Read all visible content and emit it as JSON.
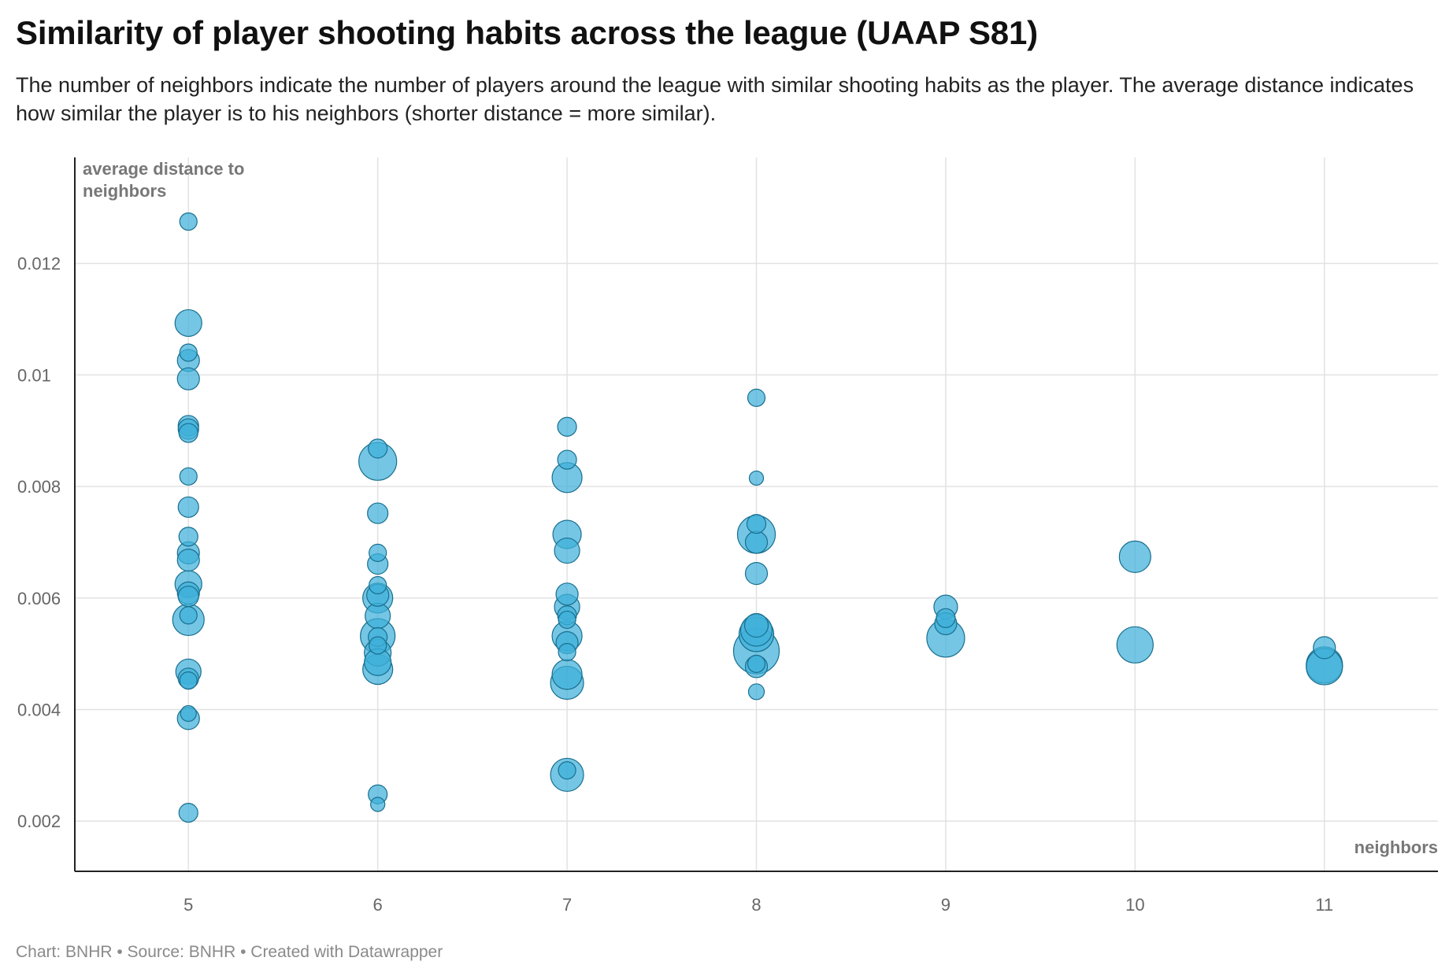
{
  "title": "Similarity of player shooting habits across the league (UAAP S81)",
  "subtitle": "The number of neighbors indicate the number of players around the league with similar shooting habits as the player. The average distance indicates how similar the player is to his neighbors (shorter distance = more similar).",
  "footer": "Chart: BNHR • Source: BNHR • Created with Datawrapper",
  "colors": {
    "bubble_fill": "#3fb0d9",
    "bubble_stroke": "#1a6f8e",
    "grid": "#e2e2e2",
    "axis": "#222222"
  },
  "chart_data": {
    "type": "scatter",
    "xlabel": "neighbors",
    "ylabel_lines": [
      "average distance to",
      "neighbors"
    ],
    "x_ticks": [
      5,
      6,
      7,
      8,
      9,
      10,
      11
    ],
    "y_ticks": [
      0.002,
      0.004,
      0.006,
      0.008,
      0.01,
      0.012
    ],
    "y_tick_labels": [
      "0.002",
      "0.004",
      "0.006",
      "0.008",
      "0.01",
      "0.012"
    ],
    "xlim": [
      4.4,
      11.6
    ],
    "ylim": [
      0.0011,
      0.0139
    ],
    "grid": true,
    "bubble_size_range": [
      11,
      40
    ],
    "points": [
      {
        "x": 5,
        "y": 0.01275,
        "r": 11
      },
      {
        "x": 5,
        "y": 0.01093,
        "r": 17
      },
      {
        "x": 5,
        "y": 0.0104,
        "r": 11
      },
      {
        "x": 5,
        "y": 0.01026,
        "r": 14
      },
      {
        "x": 5,
        "y": 0.00993,
        "r": 14
      },
      {
        "x": 5,
        "y": 0.00909,
        "r": 13
      },
      {
        "x": 5,
        "y": 0.00903,
        "r": 13
      },
      {
        "x": 5,
        "y": 0.00896,
        "r": 12
      },
      {
        "x": 5,
        "y": 0.00818,
        "r": 11
      },
      {
        "x": 5,
        "y": 0.00763,
        "r": 13
      },
      {
        "x": 5,
        "y": 0.0071,
        "r": 12
      },
      {
        "x": 5,
        "y": 0.00681,
        "r": 14
      },
      {
        "x": 5,
        "y": 0.00668,
        "r": 14
      },
      {
        "x": 5,
        "y": 0.00625,
        "r": 17
      },
      {
        "x": 5,
        "y": 0.00609,
        "r": 14
      },
      {
        "x": 5,
        "y": 0.00603,
        "r": 13
      },
      {
        "x": 5,
        "y": 0.00569,
        "r": 11
      },
      {
        "x": 5,
        "y": 0.00561,
        "r": 20
      },
      {
        "x": 5,
        "y": 0.00468,
        "r": 16
      },
      {
        "x": 5,
        "y": 0.00456,
        "r": 13
      },
      {
        "x": 5,
        "y": 0.00452,
        "r": 11
      },
      {
        "x": 5,
        "y": 0.00393,
        "r": 10
      },
      {
        "x": 5,
        "y": 0.00384,
        "r": 14
      },
      {
        "x": 5,
        "y": 0.00215,
        "r": 12
      },
      {
        "x": 6,
        "y": 0.00868,
        "r": 12
      },
      {
        "x": 6,
        "y": 0.00845,
        "r": 24
      },
      {
        "x": 6,
        "y": 0.00752,
        "r": 13
      },
      {
        "x": 6,
        "y": 0.00681,
        "r": 11
      },
      {
        "x": 6,
        "y": 0.00661,
        "r": 13
      },
      {
        "x": 6,
        "y": 0.00623,
        "r": 11
      },
      {
        "x": 6,
        "y": 0.00605,
        "r": 14
      },
      {
        "x": 6,
        "y": 0.006,
        "r": 19
      },
      {
        "x": 6,
        "y": 0.00568,
        "r": 16
      },
      {
        "x": 6,
        "y": 0.00532,
        "r": 22
      },
      {
        "x": 6,
        "y": 0.0053,
        "r": 12
      },
      {
        "x": 6,
        "y": 0.00515,
        "r": 11
      },
      {
        "x": 6,
        "y": 0.00502,
        "r": 17
      },
      {
        "x": 6,
        "y": 0.00485,
        "r": 17
      },
      {
        "x": 6,
        "y": 0.00472,
        "r": 19
      },
      {
        "x": 6,
        "y": 0.00248,
        "r": 12
      },
      {
        "x": 6,
        "y": 0.0023,
        "r": 9
      },
      {
        "x": 7,
        "y": 0.00907,
        "r": 12
      },
      {
        "x": 7,
        "y": 0.00848,
        "r": 12
      },
      {
        "x": 7,
        "y": 0.00816,
        "r": 19
      },
      {
        "x": 7,
        "y": 0.00714,
        "r": 18
      },
      {
        "x": 7,
        "y": 0.00685,
        "r": 16
      },
      {
        "x": 7,
        "y": 0.00607,
        "r": 14
      },
      {
        "x": 7,
        "y": 0.00584,
        "r": 16
      },
      {
        "x": 7,
        "y": 0.00569,
        "r": 12
      },
      {
        "x": 7,
        "y": 0.00561,
        "r": 11
      },
      {
        "x": 7,
        "y": 0.00532,
        "r": 19
      },
      {
        "x": 7,
        "y": 0.0052,
        "r": 14
      },
      {
        "x": 7,
        "y": 0.00503,
        "r": 11
      },
      {
        "x": 7,
        "y": 0.00463,
        "r": 19
      },
      {
        "x": 7,
        "y": 0.00448,
        "r": 21
      },
      {
        "x": 7,
        "y": 0.00283,
        "r": 21
      },
      {
        "x": 7,
        "y": 0.00291,
        "r": 11
      },
      {
        "x": 8,
        "y": 0.00959,
        "r": 11
      },
      {
        "x": 8,
        "y": 0.00815,
        "r": 9
      },
      {
        "x": 8,
        "y": 0.00733,
        "r": 12
      },
      {
        "x": 8,
        "y": 0.00714,
        "r": 24
      },
      {
        "x": 8,
        "y": 0.007,
        "r": 14
      },
      {
        "x": 8,
        "y": 0.00644,
        "r": 14
      },
      {
        "x": 8,
        "y": 0.00551,
        "r": 15
      },
      {
        "x": 8,
        "y": 0.00542,
        "r": 20
      },
      {
        "x": 8,
        "y": 0.00535,
        "r": 22
      },
      {
        "x": 8,
        "y": 0.00505,
        "r": 29
      },
      {
        "x": 8,
        "y": 0.00482,
        "r": 11
      },
      {
        "x": 8,
        "y": 0.00477,
        "r": 14
      },
      {
        "x": 8,
        "y": 0.00432,
        "r": 10
      },
      {
        "x": 9,
        "y": 0.00584,
        "r": 15
      },
      {
        "x": 9,
        "y": 0.00564,
        "r": 12
      },
      {
        "x": 9,
        "y": 0.00554,
        "r": 14
      },
      {
        "x": 9,
        "y": 0.00528,
        "r": 24
      },
      {
        "x": 10,
        "y": 0.00674,
        "r": 20
      },
      {
        "x": 10,
        "y": 0.00516,
        "r": 23
      },
      {
        "x": 11,
        "y": 0.00511,
        "r": 14
      },
      {
        "x": 11,
        "y": 0.0048,
        "r": 23
      },
      {
        "x": 11,
        "y": 0.00477,
        "r": 23
      }
    ]
  }
}
